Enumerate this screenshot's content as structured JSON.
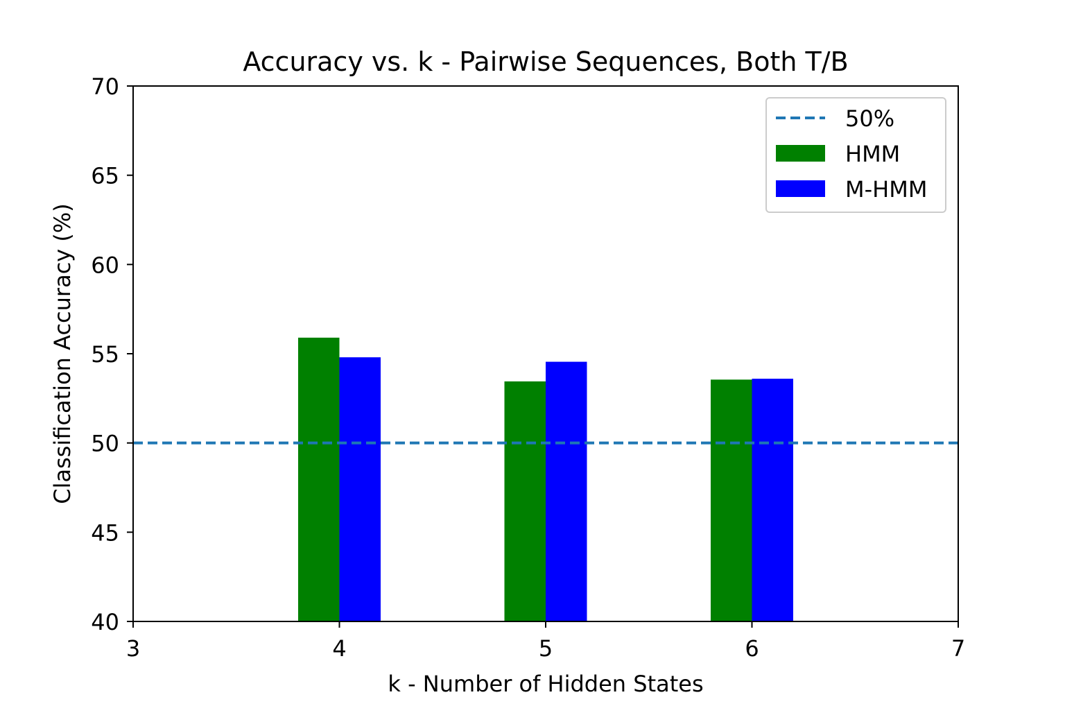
{
  "chart_data": {
    "type": "bar",
    "title": "Accuracy vs. k - Pairwise Sequences, Both T/B",
    "xlabel": "k - Number of Hidden States",
    "ylabel": "Classification Accuracy (%)",
    "categories": [
      4,
      5,
      6
    ],
    "series": [
      {
        "name": "HMM",
        "color": "#008000",
        "values": [
          55.9,
          53.45,
          53.55
        ]
      },
      {
        "name": "M-HMM",
        "color": "#0000ff",
        "values": [
          54.8,
          54.55,
          53.6
        ]
      }
    ],
    "reference_line": {
      "name": "50%",
      "value": 50,
      "color": "#1f77b4",
      "style": "dashed"
    },
    "xlim": [
      3,
      7
    ],
    "ylim": [
      40,
      70
    ],
    "xticks": [
      "3",
      "4",
      "5",
      "6",
      "7"
    ],
    "yticks": [
      "40",
      "45",
      "50",
      "55",
      "60",
      "65",
      "70"
    ],
    "grid": false,
    "legend_position": "top-right"
  }
}
